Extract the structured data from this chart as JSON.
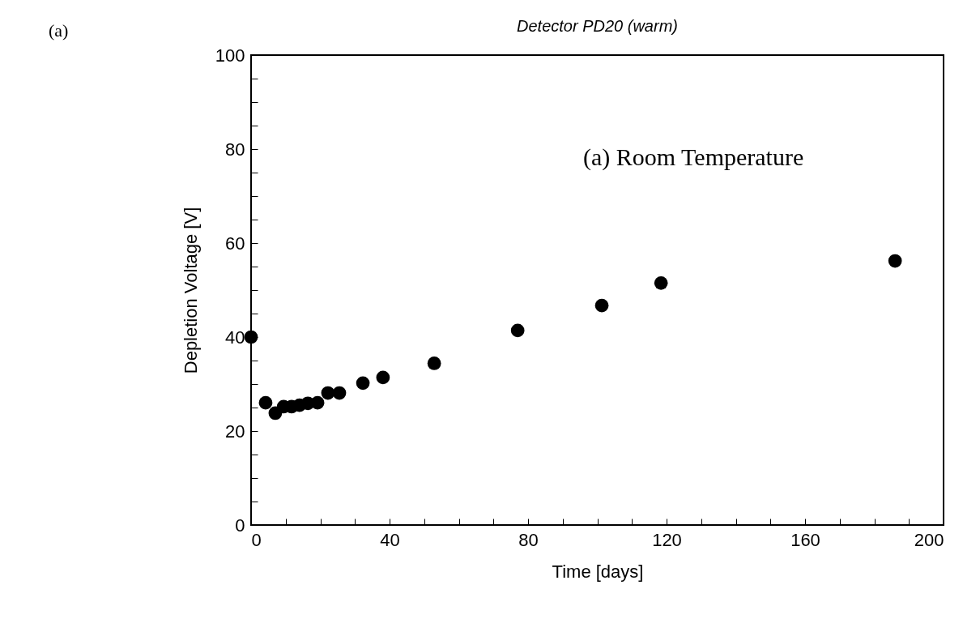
{
  "chart_data": {
    "type": "scatter",
    "title": "Detector PD20 (warm)",
    "xlabel": "Time [days]",
    "ylabel": "Depletion Voltage [V]",
    "annotations": [
      "(a) Room Temperature",
      "(a)"
    ],
    "x": [
      0,
      4.2,
      7,
      9.4,
      11.7,
      14,
      16.4,
      19.2,
      22.2,
      25.5,
      32.3,
      38.1,
      52.9,
      77,
      101.3,
      118.4,
      186
    ],
    "values": [
      40,
      26,
      23.8,
      25.2,
      25.2,
      25.5,
      25.9,
      26,
      28.1,
      28.1,
      30.2,
      31.4,
      34.4,
      41.4,
      46.7,
      51.5,
      56.2
    ],
    "color": "#000000",
    "marker": "circle",
    "grid": false,
    "xlim": [
      0,
      200
    ],
    "ylim": [
      0,
      100
    ],
    "xticks": [
      0,
      {
        "value": 10,
        "label": null
      },
      {
        "value": 20,
        "label": null
      },
      {
        "value": 30,
        "label": null
      },
      40,
      {
        "value": 50,
        "label": null
      },
      {
        "value": 60,
        "label": null
      },
      {
        "value": 70,
        "label": null
      },
      80,
      {
        "value": 90,
        "label": null
      },
      {
        "value": 100,
        "label": null
      },
      {
        "value": 110,
        "label": null
      },
      120,
      {
        "value": 130,
        "label": null
      },
      {
        "value": 140,
        "label": null
      },
      {
        "value": 150,
        "label": null
      },
      160,
      {
        "value": 170,
        "label": null
      },
      {
        "value": 180,
        "label": null
      },
      {
        "value": 190,
        "label": null
      },
      200
    ],
    "yticks": [
      0,
      {
        "value": 5,
        "label": null
      },
      {
        "value": 10,
        "label": null
      },
      {
        "value": 15,
        "label": null
      },
      20,
      {
        "value": 25,
        "label": null
      },
      {
        "value": 30,
        "label": null
      },
      {
        "value": 35,
        "label": null
      },
      40,
      {
        "value": 45,
        "label": null
      },
      {
        "value": 50,
        "label": null
      },
      {
        "value": 55,
        "label": null
      },
      60,
      {
        "value": 65,
        "label": null
      },
      {
        "value": 70,
        "label": null
      },
      {
        "value": 75,
        "label": null
      },
      80,
      {
        "value": 85,
        "label": null
      },
      {
        "value": 90,
        "label": null
      },
      {
        "value": 95,
        "label": null
      },
      100
    ]
  }
}
